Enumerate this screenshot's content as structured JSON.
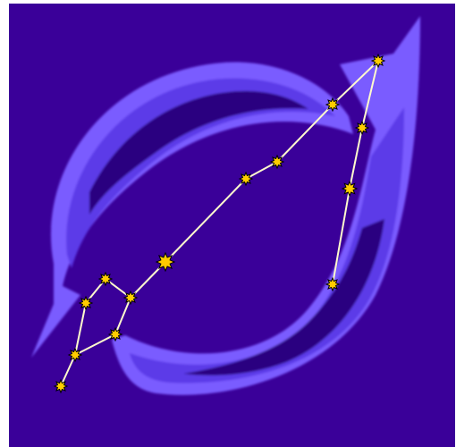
{
  "colors": {
    "background": "#3a0099",
    "band_inner": "#2a0080",
    "band_mid": "#4a2bd6",
    "band_outer": "#7a5cff",
    "link": "#fffacd",
    "star_fill": "#ffcc00",
    "star_stroke": "#000000"
  },
  "icons": {
    "star": "star-icon"
  }
}
